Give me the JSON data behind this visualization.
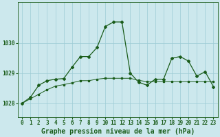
{
  "title": "Graphe pression niveau de la mer (hPa)",
  "bg_color": "#cce8ed",
  "grid_color": "#9eccd6",
  "line_color": "#1a5c1a",
  "xlim": [
    -0.5,
    23.5
  ],
  "ylim": [
    1027.55,
    1031.35
  ],
  "yticks": [
    1028,
    1029,
    1030
  ],
  "xticks": [
    0,
    1,
    2,
    3,
    4,
    5,
    6,
    7,
    8,
    9,
    10,
    11,
    12,
    13,
    14,
    15,
    16,
    17,
    18,
    19,
    20,
    21,
    22,
    23
  ],
  "series1_x": [
    0,
    1,
    2,
    3,
    4,
    5,
    6,
    7,
    8,
    9,
    10,
    11,
    12,
    13,
    14,
    15,
    16,
    17,
    18,
    19,
    20,
    21,
    22,
    23
  ],
  "series1_y": [
    1028.0,
    1028.15,
    1028.3,
    1028.45,
    1028.57,
    1028.62,
    1028.68,
    1028.75,
    1028.75,
    1028.8,
    1028.83,
    1028.83,
    1028.83,
    1028.83,
    1028.76,
    1028.72,
    1028.72,
    1028.72,
    1028.72,
    1028.72,
    1028.72,
    1028.72,
    1028.72,
    1028.72
  ],
  "series2_x": [
    0,
    1,
    2,
    3,
    4,
    5,
    6,
    7,
    8,
    9,
    10,
    11,
    12,
    13,
    14,
    15,
    16,
    17,
    18,
    19,
    20,
    21,
    22,
    23
  ],
  "series2_y": [
    1028.0,
    1028.2,
    1028.6,
    1028.75,
    1028.8,
    1028.82,
    1029.2,
    1029.55,
    1029.55,
    1029.85,
    1030.55,
    1030.7,
    1030.7,
    1029.0,
    1028.7,
    1028.6,
    1028.8,
    1028.8,
    1029.5,
    1029.55,
    1029.4,
    1028.9,
    1029.05,
    1028.55
  ],
  "tick_fontsize": 5.5,
  "title_fontsize": 7.0
}
